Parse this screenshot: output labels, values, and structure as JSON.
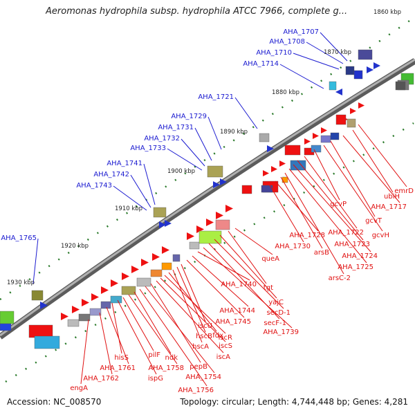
{
  "title": "Aeromonas hydrophila subsp. hydrophila ATCC 7966, complete g...",
  "accession": "Accession: NC_008570",
  "topology": "Topology: circular; Length: 4,744,448 bp; Genes: 4,281",
  "colors": {
    "backbone": "#888888",
    "upper_labels": "#1a1ad0",
    "lower_labels": "#e01010",
    "tick": "#2a7a2a"
  },
  "kbp_labels": [
    "1860 kbp",
    "1870 kbp",
    "1880 kbp",
    "1890 kbp",
    "1900 kbp",
    "1910 kbp",
    "1920 kbp",
    "1930 kbp"
  ],
  "upper_genes": [
    "AHA_1707",
    "AHA_1708",
    "AHA_1710",
    "AHA_1714",
    "AHA_1721",
    "AHA_1729",
    "AHA_1731",
    "AHA_1732",
    "AHA_1733",
    "AHA_1741",
    "AHA_1742",
    "AHA_1743",
    "AHA_1765"
  ],
  "lower_genes": [
    "emrD",
    "ubiH",
    "AHA_1717",
    "gcvT",
    "gcvH",
    "gcvP",
    "AHA_1722",
    "AHA_1723",
    "AHA_1724",
    "AHA_1725",
    "arsC-2",
    "arsB",
    "AHA_1728",
    "AHA_1730",
    "queA",
    "tgt",
    "yajC",
    "secD-1",
    "secF-1",
    "AHA_1739",
    "AHA_1740",
    "AHA_1744",
    "AHA_1745",
    "iscU",
    "hscB",
    "hscA",
    "fdx",
    "iscR",
    "iscS",
    "iscA",
    "pepB",
    "AHA_1754",
    "AHA_1756",
    "ndk",
    "AHA_1758",
    "pilF",
    "ispG",
    "hisS",
    "AHA_1761",
    "AHA_1762",
    "engA"
  ]
}
